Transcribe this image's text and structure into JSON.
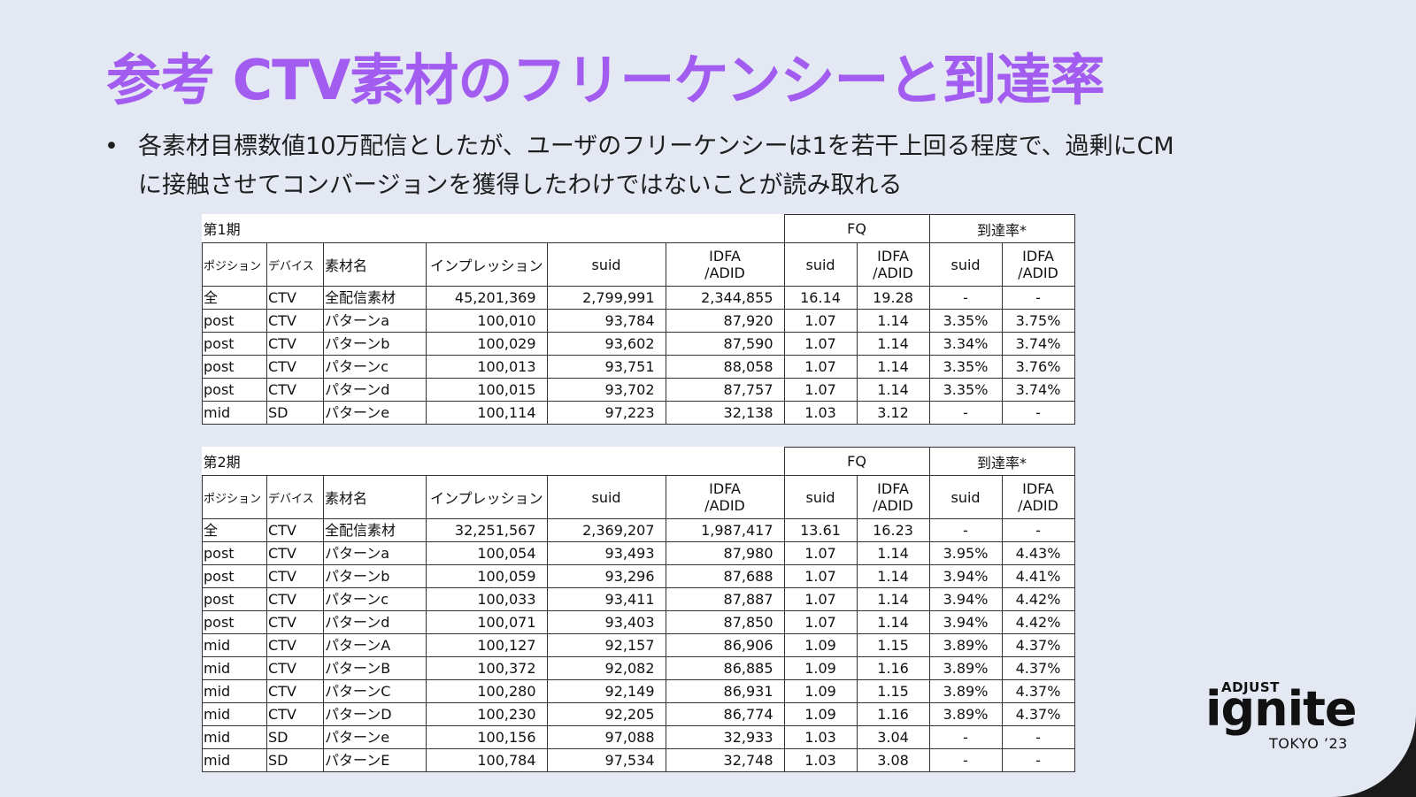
{
  "title": "参考 CTV素材のフリーケンシーと到達率",
  "bullet": {
    "symbol": "•",
    "line1": "各素材目標数値10万配信としたが、ユーザのフリーケンシーは1を若干上回る程度で、過剰にCM",
    "line2": "に接触させてコンバージョンを獲得したわけではないことが読み取れる"
  },
  "headers": {
    "fq": "FQ",
    "reach": "到達率*",
    "position": "ポジション",
    "device": "デバイス",
    "material": "素材名",
    "impression": "インプレッション",
    "suid": "suid",
    "idfa1": "IDFA",
    "idfa2": "/ADID"
  },
  "table1": {
    "period": "第1期",
    "rows": [
      [
        "全",
        "CTV",
        "全配信素材",
        "45,201,369",
        "2,799,991",
        "2,344,855",
        "16.14",
        "19.28",
        "-",
        "-"
      ],
      [
        "post",
        "CTV",
        "パターンa",
        "100,010",
        "93,784",
        "87,920",
        "1.07",
        "1.14",
        "3.35%",
        "3.75%"
      ],
      [
        "post",
        "CTV",
        "パターンb",
        "100,029",
        "93,602",
        "87,590",
        "1.07",
        "1.14",
        "3.34%",
        "3.74%"
      ],
      [
        "post",
        "CTV",
        "パターンc",
        "100,013",
        "93,751",
        "88,058",
        "1.07",
        "1.14",
        "3.35%",
        "3.76%"
      ],
      [
        "post",
        "CTV",
        "パターンd",
        "100,015",
        "93,702",
        "87,757",
        "1.07",
        "1.14",
        "3.35%",
        "3.74%"
      ],
      [
        "mid",
        "SD",
        "パターンe",
        "100,114",
        "97,223",
        "32,138",
        "1.03",
        "3.12",
        "-",
        "-"
      ]
    ]
  },
  "table2": {
    "period": "第2期",
    "rows": [
      [
        "全",
        "CTV",
        "全配信素材",
        "32,251,567",
        "2,369,207",
        "1,987,417",
        "13.61",
        "16.23",
        "-",
        "-"
      ],
      [
        "post",
        "CTV",
        "パターンa",
        "100,054",
        "93,493",
        "87,980",
        "1.07",
        "1.14",
        "3.95%",
        "4.43%"
      ],
      [
        "post",
        "CTV",
        "パターンb",
        "100,059",
        "93,296",
        "87,688",
        "1.07",
        "1.14",
        "3.94%",
        "4.41%"
      ],
      [
        "post",
        "CTV",
        "パターンc",
        "100,033",
        "93,411",
        "87,887",
        "1.07",
        "1.14",
        "3.94%",
        "4.42%"
      ],
      [
        "post",
        "CTV",
        "パターンd",
        "100,071",
        "93,403",
        "87,850",
        "1.07",
        "1.14",
        "3.94%",
        "4.42%"
      ],
      [
        "mid",
        "CTV",
        "パターンA",
        "100,127",
        "92,157",
        "86,906",
        "1.09",
        "1.15",
        "3.89%",
        "4.37%"
      ],
      [
        "mid",
        "CTV",
        "パターンB",
        "100,372",
        "92,082",
        "86,885",
        "1.09",
        "1.16",
        "3.89%",
        "4.37%"
      ],
      [
        "mid",
        "CTV",
        "パターンC",
        "100,280",
        "92,149",
        "86,931",
        "1.09",
        "1.15",
        "3.89%",
        "4.37%"
      ],
      [
        "mid",
        "CTV",
        "パターンD",
        "100,230",
        "92,205",
        "86,774",
        "1.09",
        "1.16",
        "3.89%",
        "4.37%"
      ],
      [
        "mid",
        "SD",
        "パターンe",
        "100,156",
        "97,088",
        "32,933",
        "1.03",
        "3.04",
        "-",
        "-"
      ],
      [
        "mid",
        "SD",
        "パターンE",
        "100,784",
        "97,534",
        "32,748",
        "1.03",
        "3.08",
        "-",
        "-"
      ]
    ]
  },
  "logo": {
    "top": "ADJUST",
    "name": "ignite",
    "sub": "TOKYO ’23"
  },
  "colors": {
    "title": "#a25cf0",
    "background": "#e4e8f3"
  }
}
